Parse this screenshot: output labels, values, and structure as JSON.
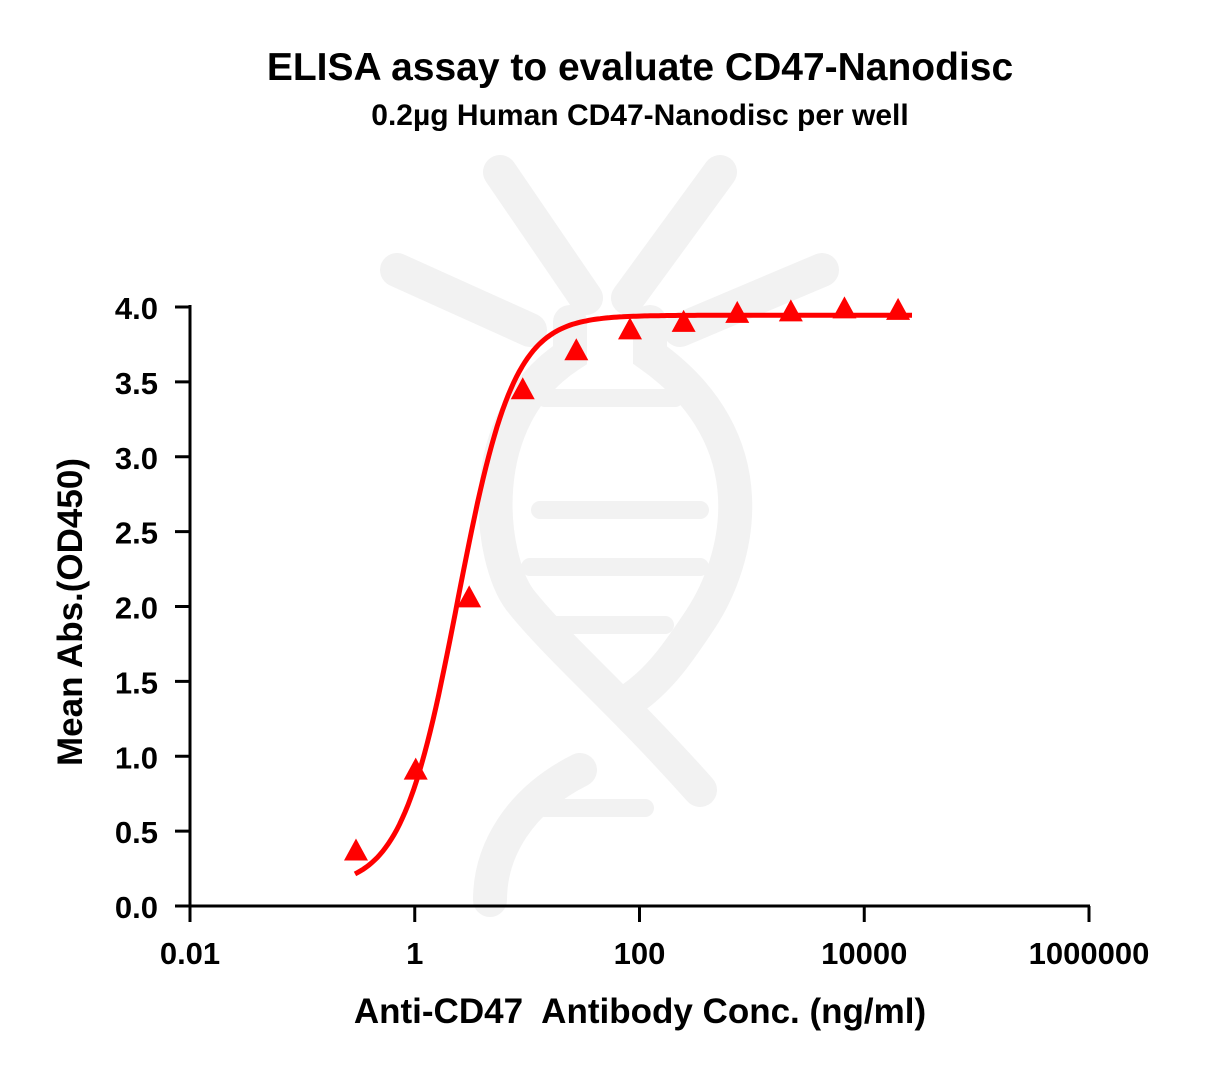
{
  "chart_data": {
    "type": "scatter",
    "title": "ELISA assay to evaluate CD47-Nanodisc",
    "subtitle": "0.2µg Human CD47-Nanodisc per well",
    "xlabel": "Anti-CD47  Antibody Conc. (ng/ml)",
    "ylabel": "Mean Abs.(OD450)",
    "xscale": "log",
    "xlim": [
      0.01,
      1000000
    ],
    "ylim": [
      0.0,
      4.0
    ],
    "x_ticks": [
      "0.01",
      "1",
      "100",
      "10000",
      "1000000"
    ],
    "y_ticks": [
      "0.0",
      "0.5",
      "1.0",
      "1.5",
      "2.0",
      "2.5",
      "3.0",
      "3.5",
      "4.0"
    ],
    "grid": false,
    "legend": null,
    "series": [
      {
        "name": "Human CD47-Nanodisc",
        "marker": "triangle",
        "color": "#ff0000",
        "fit": "4PL sigmoid curve",
        "x": [
          0.3,
          1.02,
          3.05,
          9.14,
          27.4,
          82.3,
          247,
          741,
          2222,
          6667,
          20000
        ],
        "y": [
          0.36,
          0.9,
          2.05,
          3.44,
          3.7,
          3.84,
          3.89,
          3.95,
          3.96,
          3.98,
          3.97
        ]
      }
    ]
  }
}
